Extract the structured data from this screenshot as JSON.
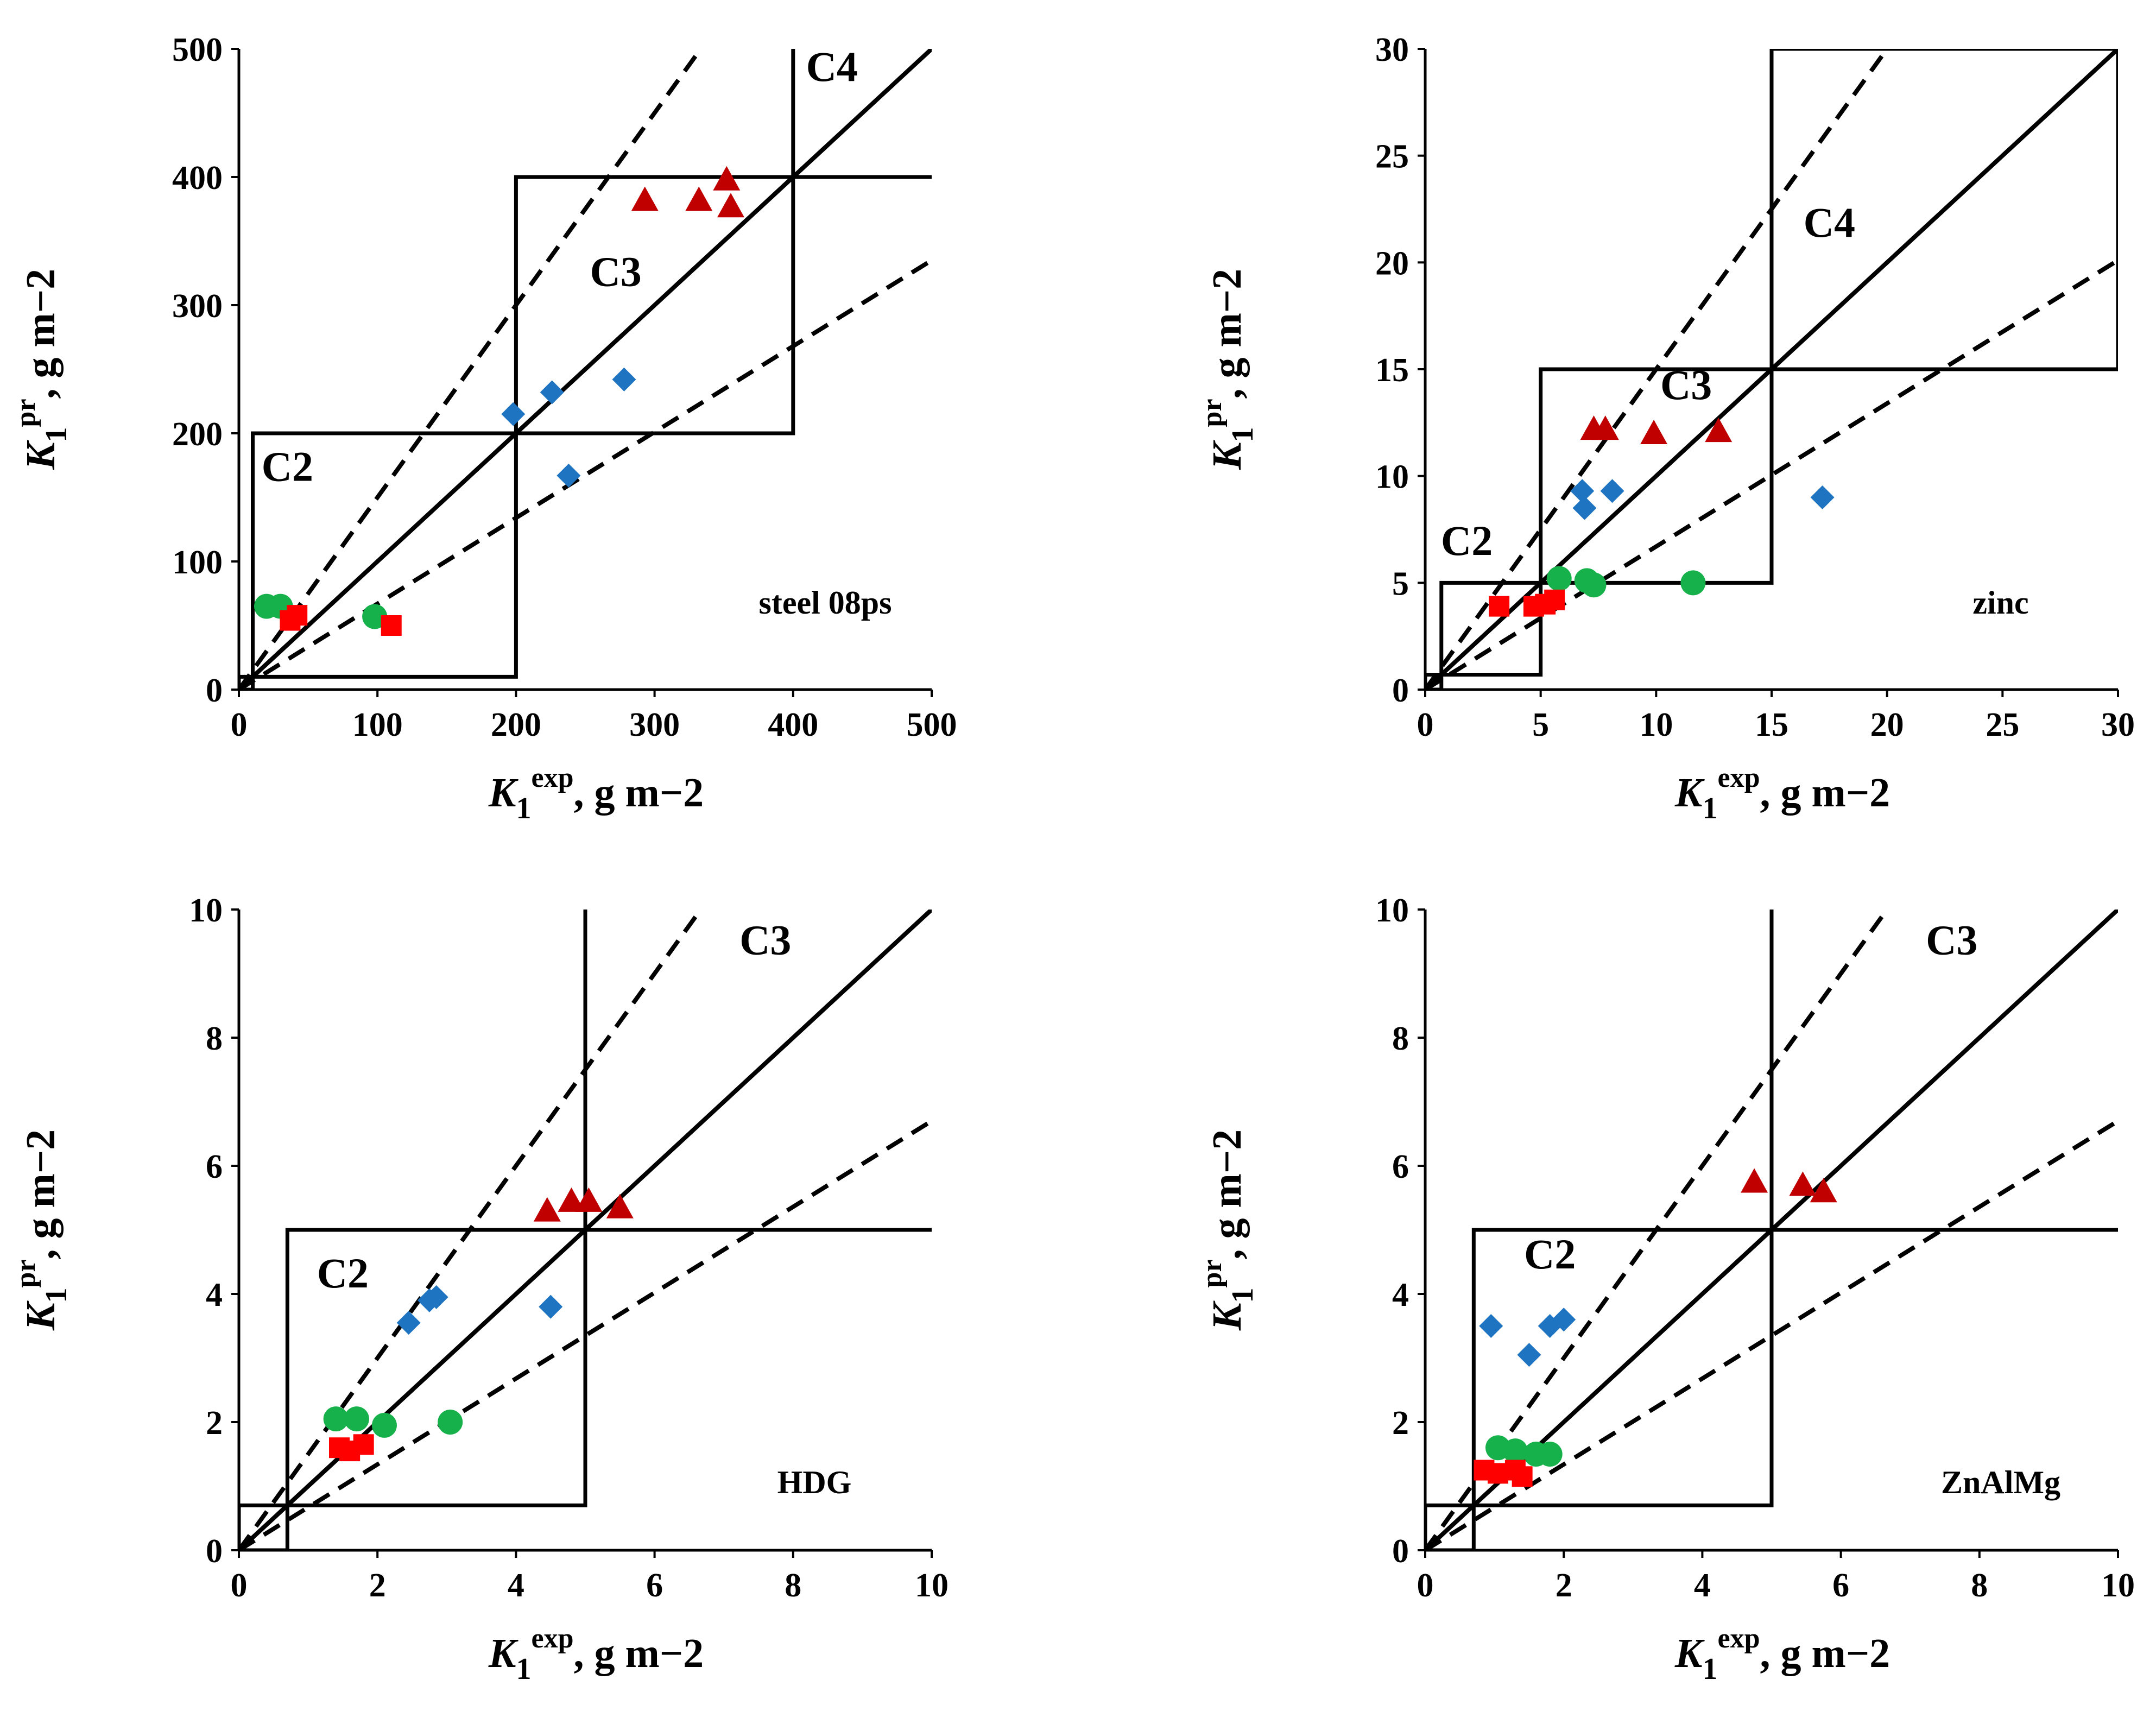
{
  "chart_data": [
    {
      "type": "scatter",
      "title": "",
      "material": "steel 08ps",
      "xlabel": {
        "main": "K",
        "sub": "1",
        "sup": "exp",
        "unit": ", g m−2"
      },
      "ylabel": {
        "main": "K",
        "sub": "1",
        "sup": "pr",
        "unit": ", g m−2"
      },
      "xlim": [
        0,
        500
      ],
      "ylim": [
        0,
        500
      ],
      "xticks": [
        "0",
        "100",
        "200",
        "300",
        "400",
        "500"
      ],
      "yticks": [
        "0",
        "100",
        "200",
        "300",
        "400",
        "500"
      ],
      "lines": {
        "identity_slope": 1,
        "dashed_slopes": [
          1.5,
          0.67
        ]
      },
      "category_bounds": [
        [
          0,
          10
        ],
        [
          10,
          200
        ],
        [
          200,
          400
        ],
        [
          400,
          650
        ]
      ],
      "zone_labels": [
        {
          "text": "C2",
          "x": 35,
          "y": 163
        },
        {
          "text": "C3",
          "x": 272,
          "y": 315
        },
        {
          "text": "C4",
          "x": 428,
          "y": 475
        }
      ],
      "series": [
        {
          "name": "set1",
          "marker": "diamond",
          "color": "#1f74c2",
          "x": [
            198,
            226,
            238,
            278
          ],
          "y": [
            215,
            232,
            167,
            242
          ]
        },
        {
          "name": "set2",
          "marker": "triangle",
          "color": "#c00000",
          "x": [
            293,
            332,
            352,
            355
          ],
          "y": [
            382,
            382,
            398,
            377
          ]
        },
        {
          "name": "set3",
          "marker": "circle",
          "color": "#16b14b",
          "x": [
            20,
            30,
            98
          ],
          "y": [
            65,
            65,
            57
          ]
        },
        {
          "name": "set4",
          "marker": "square",
          "color": "#ff0000",
          "x": [
            37,
            42,
            110
          ],
          "y": [
            54,
            58,
            50
          ]
        }
      ]
    },
    {
      "type": "scatter",
      "title": "",
      "material": "zinc",
      "xlabel": {
        "main": "K",
        "sub": "1",
        "sup": "exp",
        "unit": ", g m−2"
      },
      "ylabel": {
        "main": "K",
        "sub": "1",
        "sup": "pr",
        "unit": ", g m−2"
      },
      "xlim": [
        0,
        30
      ],
      "ylim": [
        0,
        30
      ],
      "xticks": [
        "0",
        "5",
        "10",
        "15",
        "20",
        "25",
        "30"
      ],
      "yticks": [
        "0",
        "5",
        "10",
        "15",
        "20",
        "25",
        "30"
      ],
      "lines": {
        "identity_slope": 1,
        "dashed_slopes": [
          1.5,
          0.67
        ]
      },
      "category_bounds": [
        [
          0,
          0.7
        ],
        [
          0.7,
          5
        ],
        [
          5,
          15
        ],
        [
          15,
          30
        ]
      ],
      "zone_labels": [
        {
          "text": "C2",
          "x": 1.8,
          "y": 6.3
        },
        {
          "text": "C3",
          "x": 11.3,
          "y": 13.6
        },
        {
          "text": "C4",
          "x": 17.5,
          "y": 21.2
        }
      ],
      "series": [
        {
          "name": "set1",
          "marker": "diamond",
          "color": "#1f74c2",
          "x": [
            6.8,
            6.9,
            8.1,
            17.2
          ],
          "y": [
            9.3,
            8.5,
            9.3,
            9.0
          ]
        },
        {
          "name": "set2",
          "marker": "triangle",
          "color": "#c00000",
          "x": [
            7.3,
            7.8,
            9.9,
            12.7
          ],
          "y": [
            12.2,
            12.2,
            12.0,
            12.1
          ]
        },
        {
          "name": "set3",
          "marker": "circle",
          "color": "#16b14b",
          "x": [
            5.8,
            7.0,
            7.3,
            11.6
          ],
          "y": [
            5.2,
            5.1,
            4.9,
            5.0
          ]
        },
        {
          "name": "set4",
          "marker": "square",
          "color": "#ff0000",
          "x": [
            3.2,
            4.7,
            5.2,
            5.6
          ],
          "y": [
            3.9,
            3.9,
            4.0,
            4.2
          ]
        }
      ]
    },
    {
      "type": "scatter",
      "title": "",
      "material": "HDG",
      "xlabel": {
        "main": "K",
        "sub": "1",
        "sup": "exp",
        "unit": ", g m−2"
      },
      "ylabel": {
        "main": "K",
        "sub": "1",
        "sup": "pr",
        "unit": ", g m−2"
      },
      "xlim": [
        0,
        10
      ],
      "ylim": [
        0,
        10
      ],
      "xticks": [
        "0",
        "2",
        "4",
        "6",
        "8",
        "10"
      ],
      "yticks": [
        "0",
        "2",
        "4",
        "6",
        "8",
        "10"
      ],
      "lines": {
        "identity_slope": 1,
        "dashed_slopes": [
          1.5,
          0.67
        ]
      },
      "category_bounds": [
        [
          0,
          0.7
        ],
        [
          0.7,
          5
        ],
        [
          5,
          12
        ]
      ],
      "zone_labels": [
        {
          "text": "C2",
          "x": 1.5,
          "y": 4.1
        },
        {
          "text": "C3",
          "x": 7.6,
          "y": 9.3
        }
      ],
      "series": [
        {
          "name": "set1",
          "marker": "diamond",
          "color": "#1f74c2",
          "x": [
            2.45,
            2.75,
            2.85,
            4.5
          ],
          "y": [
            3.55,
            3.9,
            3.95,
            3.8
          ]
        },
        {
          "name": "set2",
          "marker": "triangle",
          "color": "#c00000",
          "x": [
            4.45,
            4.8,
            5.05,
            5.5
          ],
          "y": [
            5.3,
            5.45,
            5.45,
            5.35
          ]
        },
        {
          "name": "set3",
          "marker": "circle",
          "color": "#16b14b",
          "x": [
            1.4,
            1.7,
            2.1,
            3.05
          ],
          "y": [
            2.05,
            2.05,
            1.95,
            2.0
          ]
        },
        {
          "name": "set4",
          "marker": "square",
          "color": "#ff0000",
          "x": [
            1.45,
            1.6,
            1.8
          ],
          "y": [
            1.6,
            1.55,
            1.65
          ]
        }
      ]
    },
    {
      "type": "scatter",
      "title": "",
      "material": "ZnAlMg",
      "xlabel": {
        "main": "K",
        "sub": "1",
        "sup": "exp",
        "unit": ", g m−2"
      },
      "ylabel": {
        "main": "K",
        "sub": "1",
        "sup": "pr",
        "unit": ", g m−2"
      },
      "xlim": [
        0,
        10
      ],
      "ylim": [
        0,
        10
      ],
      "xticks": [
        "0",
        "2",
        "4",
        "6",
        "8",
        "10"
      ],
      "yticks": [
        "0",
        "2",
        "4",
        "6",
        "8",
        "10"
      ],
      "lines": {
        "identity_slope": 1,
        "dashed_slopes": [
          1.5,
          0.67
        ]
      },
      "category_bounds": [
        [
          0,
          0.7
        ],
        [
          0.7,
          5
        ],
        [
          5,
          12
        ]
      ],
      "zone_labels": [
        {
          "text": "C2",
          "x": 1.8,
          "y": 4.4
        },
        {
          "text": "C3",
          "x": 7.6,
          "y": 9.3
        }
      ],
      "series": [
        {
          "name": "set1",
          "marker": "diamond",
          "color": "#1f74c2",
          "x": [
            0.95,
            1.5,
            1.8,
            2.0
          ],
          "y": [
            3.5,
            3.05,
            3.5,
            3.6
          ]
        },
        {
          "name": "set2",
          "marker": "triangle",
          "color": "#c00000",
          "x": [
            4.75,
            5.45,
            5.75
          ],
          "y": [
            5.75,
            5.7,
            5.6
          ]
        },
        {
          "name": "set3",
          "marker": "circle",
          "color": "#16b14b",
          "x": [
            1.05,
            1.3,
            1.6,
            1.8
          ],
          "y": [
            1.6,
            1.55,
            1.5,
            1.5
          ]
        },
        {
          "name": "set4",
          "marker": "square",
          "color": "#ff0000",
          "x": [
            0.85,
            1.05,
            1.3,
            1.4
          ],
          "y": [
            1.25,
            1.2,
            1.25,
            1.15
          ]
        }
      ]
    }
  ]
}
